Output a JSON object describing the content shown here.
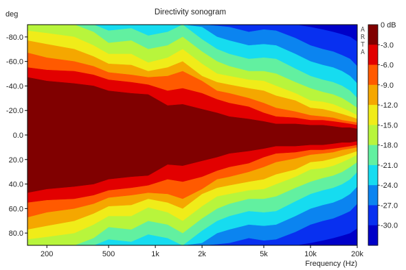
{
  "chart_data": {
    "type": "heatmap",
    "title": "Directivity sonogram",
    "xlabel": "Frequency (Hz)",
    "ylabel": "deg",
    "x_scale": "log",
    "xlim": [
      150,
      20000
    ],
    "ylim": [
      90,
      -90
    ],
    "x_tick_labels": [
      "200",
      "500",
      "1k",
      "2k",
      "5k",
      "10k",
      "20k"
    ],
    "x_tick_values": [
      200,
      500,
      1000,
      2000,
      5000,
      10000,
      20000
    ],
    "y_tick_labels": [
      "-80.0",
      "-60.0",
      "-40.0",
      "-20.0",
      "0.0",
      "20.0",
      "40.0",
      "60.0",
      "80.0"
    ],
    "y_tick_values": [
      -80,
      -60,
      -40,
      -20,
      0,
      20,
      40,
      60,
      80
    ],
    "colorbar": {
      "unit_label": "0 dB",
      "levels": [
        "-3.0",
        "-6.0",
        "-9.0",
        "-12.0",
        "-15.0",
        "-18.0",
        "-21.0",
        "-24.0",
        "-27.0",
        "-30.0"
      ],
      "colors": [
        "#800000",
        "#e20000",
        "#ff5a00",
        "#f5a700",
        "#f0ec19",
        "#b8f53c",
        "#62f0a0",
        "#16dcf0",
        "#0b84f0",
        "#0830f0",
        "#0000c8"
      ]
    },
    "watermark": "ARTA",
    "sample_frequencies": [
      150,
      200,
      300,
      400,
      500,
      700,
      900,
      1200,
      1500,
      2000,
      2500,
      3000,
      4000,
      5000,
      6000,
      8000,
      10000,
      12000,
      14000,
      16000,
      18000,
      20000
    ],
    "contour_angles": {
      "-3": [
        47,
        44,
        42,
        40,
        36,
        34,
        33,
        24,
        25,
        21,
        18,
        15,
        13,
        11,
        9,
        9,
        8,
        8,
        7,
        6,
        6,
        5
      ],
      "-6": [
        55,
        53,
        52,
        49,
        45,
        43,
        41,
        36,
        38,
        34,
        29,
        26,
        23,
        18,
        15,
        14,
        12,
        12,
        11,
        10,
        9,
        8
      ],
      "-9": [
        67,
        63,
        60,
        56,
        51,
        49,
        47,
        48,
        52,
        44,
        36,
        34,
        30,
        26,
        22,
        19,
        16,
        15,
        14,
        12,
        11,
        10
      ],
      "-12": [
        77,
        74,
        70,
        64,
        58,
        57,
        52,
        55,
        60,
        48,
        43,
        41,
        38,
        36,
        32,
        28,
        22,
        21,
        19,
        17,
        15,
        13
      ],
      "-15": [
        85,
        83,
        80,
        73,
        66,
        66,
        59,
        63,
        70,
        58,
        50,
        48,
        45,
        44,
        40,
        34,
        28,
        27,
        25,
        22,
        19,
        16
      ],
      "-18": [
        90,
        90,
        90,
        84,
        75,
        77,
        70,
        73,
        80,
        68,
        60,
        56,
        52,
        52,
        50,
        43,
        38,
        35,
        33,
        30,
        26,
        22
      ],
      "-21": [
        90,
        90,
        90,
        90,
        85,
        87,
        81,
        84,
        90,
        78,
        70,
        66,
        62,
        63,
        62,
        54,
        48,
        45,
        43,
        40,
        36,
        30
      ],
      "-24": [
        90,
        90,
        90,
        90,
        90,
        90,
        90,
        90,
        90,
        88,
        80,
        77,
        73,
        74,
        73,
        66,
        60,
        57,
        55,
        52,
        48,
        42
      ],
      "-27": [
        90,
        90,
        90,
        90,
        90,
        90,
        90,
        90,
        90,
        90,
        89,
        88,
        84,
        86,
        85,
        79,
        73,
        70,
        68,
        65,
        62,
        56
      ],
      "-30": [
        90,
        90,
        90,
        90,
        90,
        90,
        90,
        90,
        90,
        90,
        90,
        90,
        90,
        90,
        90,
        90,
        88,
        86,
        84,
        82,
        80,
        76
      ]
    }
  }
}
